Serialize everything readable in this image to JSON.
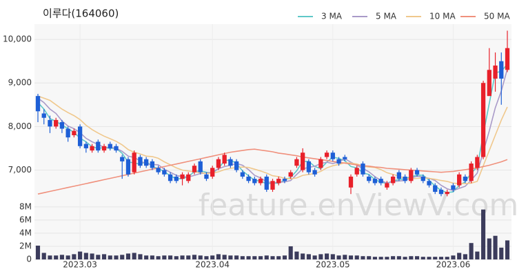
{
  "chart_data": {
    "type": "candlestick",
    "title": "이루다(164060)",
    "watermark": "feature.enViewV.com",
    "categories": [
      null,
      null,
      null,
      null,
      null,
      null,
      null,
      "2023.03",
      null,
      null,
      null,
      null,
      null,
      null,
      null,
      null,
      null,
      null,
      null,
      null,
      null,
      null,
      null,
      null,
      null,
      null,
      null,
      null,
      null,
      "2023.04",
      null,
      null,
      null,
      null,
      null,
      null,
      null,
      null,
      null,
      null,
      null,
      null,
      null,
      null,
      null,
      null,
      null,
      null,
      null,
      "2023.05",
      null,
      null,
      null,
      null,
      null,
      null,
      null,
      null,
      null,
      null,
      null,
      null,
      null,
      null,
      null,
      null,
      null,
      null,
      null,
      "2023.06",
      null,
      null,
      null,
      null,
      null,
      null,
      null,
      null,
      null
    ],
    "up_color": "#e8202a",
    "down_color": "#1e5fd6",
    "open": [
      8700,
      8300,
      8150,
      8000,
      8100,
      7950,
      7800,
      8000,
      7600,
      7450,
      7650,
      7450,
      7600,
      7550,
      7300,
      7250,
      6950,
      7300,
      7250,
      7200,
      7050,
      7000,
      6900,
      6850,
      6800,
      6750,
      6950,
      7200,
      6900,
      6850,
      7050,
      7150,
      7250,
      7200,
      6950,
      6850,
      6800,
      6700,
      6850,
      6550,
      6700,
      6800,
      6850,
      7100,
      7000,
      7200,
      7000,
      7050,
      7300,
      7400,
      7250,
      7300,
      6600,
      6900,
      7150,
      6850,
      6800,
      6800,
      6600,
      6700,
      6950,
      6850,
      6750,
      7000,
      6850,
      6750,
      6650,
      6550,
      6450,
      6650,
      6650,
      6850,
      6750,
      7050,
      7300,
      8700,
      9100,
      9500,
      9300
    ],
    "high": [
      8750,
      8400,
      8250,
      8200,
      8150,
      8000,
      7950,
      8050,
      7650,
      7600,
      7700,
      7600,
      7650,
      7600,
      7350,
      7300,
      7450,
      7350,
      7300,
      7250,
      7100,
      7050,
      6950,
      6900,
      6950,
      6950,
      7150,
      7250,
      6950,
      7100,
      7300,
      7400,
      7300,
      7250,
      7000,
      6900,
      6850,
      6850,
      6900,
      6800,
      6850,
      6850,
      7000,
      7300,
      7500,
      7250,
      7050,
      7300,
      7450,
      7450,
      7300,
      7350,
      6900,
      7100,
      7200,
      6900,
      6850,
      6850,
      6750,
      6900,
      7000,
      6900,
      7050,
      7050,
      6900,
      6800,
      6700,
      6600,
      6550,
      6700,
      6950,
      6900,
      7200,
      7350,
      9050,
      9800,
      9700,
      9700,
      10200
    ],
    "low": [
      8100,
      8050,
      7850,
      7950,
      7850,
      7650,
      7750,
      7500,
      7400,
      7400,
      7400,
      7400,
      7450,
      7400,
      6800,
      6850,
      6900,
      7050,
      7050,
      7000,
      6900,
      6850,
      6700,
      6700,
      6650,
      6700,
      6900,
      6900,
      6750,
      6800,
      7000,
      7100,
      7050,
      6950,
      6800,
      6700,
      6650,
      6650,
      6500,
      6500,
      6650,
      6700,
      6800,
      7050,
      6950,
      6900,
      6850,
      7000,
      7250,
      7200,
      7100,
      7200,
      6450,
      6850,
      6850,
      6700,
      6650,
      6650,
      6550,
      6650,
      6750,
      6700,
      6700,
      6850,
      6700,
      6600,
      6450,
      6400,
      6400,
      6500,
      6600,
      6700,
      6700,
      7000,
      7250,
      8700,
      8800,
      8500,
      9250
    ],
    "close": [
      8350,
      8200,
      8000,
      8150,
      7950,
      7750,
      7900,
      7550,
      7500,
      7550,
      7450,
      7550,
      7500,
      7450,
      7200,
      6900,
      7400,
      7100,
      7100,
      7050,
      6950,
      6900,
      6750,
      6750,
      6900,
      6900,
      7100,
      6950,
      6800,
      7050,
      7250,
      7350,
      7100,
      7000,
      6850,
      6750,
      6700,
      6800,
      6550,
      6750,
      6800,
      6750,
      6950,
      7250,
      7400,
      6950,
      6900,
      7250,
      7400,
      7250,
      7150,
      7250,
      6850,
      7050,
      6900,
      6750,
      6700,
      6700,
      6700,
      6850,
      6800,
      6750,
      7000,
      6900,
      6750,
      6650,
      6500,
      6450,
      6500,
      6550,
      6900,
      6750,
      7150,
      7300,
      9000,
      9300,
      9400,
      9100,
      9800
    ],
    "series": [
      {
        "name": "3 MA",
        "color": "#5fc8c8",
        "values": [
          8550,
          8400,
          8183,
          8117,
          8033,
          7950,
          7867,
          7733,
          7650,
          7533,
          7500,
          7517,
          7500,
          7500,
          7383,
          7183,
          7167,
          7133,
          7200,
          7083,
          7033,
          6967,
          6867,
          6800,
          6800,
          6850,
          6967,
          6983,
          6950,
          6933,
          7033,
          7217,
          7233,
          7150,
          6983,
          6867,
          6767,
          6750,
          6683,
          6700,
          6700,
          6767,
          6833,
          6983,
          7200,
          7200,
          7083,
          7033,
          7183,
          7300,
          7267,
          7217,
          7083,
          7050,
          6933,
          6900,
          6783,
          6717,
          6700,
          6750,
          6783,
          6800,
          6850,
          6883,
          6883,
          6767,
          6633,
          6533,
          6483,
          6500,
          6650,
          6733,
          6933,
          7067,
          7817,
          8533,
          9233,
          9267,
          9433
        ]
      },
      {
        "name": "5 MA",
        "color": "#a99ac8",
        "values": [
          8650,
          8550,
          8400,
          8300,
          8130,
          8010,
          7950,
          7860,
          7730,
          7650,
          7590,
          7520,
          7520,
          7500,
          7430,
          7320,
          7290,
          7210,
          7140,
          7130,
          7120,
          7020,
          6950,
          6880,
          6850,
          6840,
          6880,
          6920,
          6930,
          6960,
          7030,
          7080,
          7110,
          7150,
          7110,
          7010,
          6880,
          6820,
          6730,
          6710,
          6720,
          6730,
          6760,
          6900,
          7030,
          7060,
          7090,
          7150,
          7180,
          7150,
          7190,
          7260,
          7180,
          7110,
          7040,
          6960,
          6850,
          6760,
          6700,
          6740,
          6750,
          6760,
          6820,
          6860,
          6840,
          6810,
          6760,
          6650,
          6570,
          6530,
          6580,
          6630,
          6770,
          6930,
          7420,
          7900,
          8430,
          8820,
          9320
        ]
      },
      {
        "name": "10 MA",
        "color": "#f0c88c",
        "values": [
          8700,
          8650,
          8600,
          8500,
          8400,
          8320,
          8250,
          8160,
          8030,
          7930,
          7850,
          7780,
          7720,
          7660,
          7580,
          7470,
          7410,
          7370,
          7320,
          7310,
          7270,
          7190,
          7120,
          7050,
          7000,
          6980,
          6960,
          6940,
          6920,
          6930,
          6960,
          7010,
          7040,
          7060,
          7070,
          7060,
          7020,
          6980,
          6930,
          6870,
          6850,
          6810,
          6800,
          6820,
          6880,
          6900,
          6920,
          6970,
          7050,
          7100,
          7130,
          7170,
          7160,
          7140,
          7090,
          7070,
          7060,
          7010,
          6940,
          6900,
          6860,
          6810,
          6800,
          6810,
          6820,
          6810,
          6790,
          6760,
          6740,
          6700,
          6690,
          6690,
          6700,
          6740,
          7100,
          7450,
          7800,
          8150,
          8450
        ]
      },
      {
        "name": "50 MA",
        "color": "#f0907c",
        "values": [
          6450,
          6480,
          6510,
          6540,
          6570,
          6600,
          6630,
          6660,
          6690,
          6720,
          6750,
          6780,
          6810,
          6840,
          6870,
          6900,
          6930,
          6960,
          6990,
          7020,
          7050,
          7080,
          7110,
          7140,
          7170,
          7200,
          7230,
          7260,
          7290,
          7320,
          7350,
          7380,
          7410,
          7430,
          7450,
          7470,
          7480,
          7460,
          7440,
          7420,
          7390,
          7370,
          7350,
          7330,
          7300,
          7280,
          7260,
          7240,
          7220,
          7200,
          7180,
          7160,
          7140,
          7120,
          7100,
          7090,
          7070,
          7060,
          7040,
          7030,
          7020,
          7010,
          7000,
          6990,
          6980,
          6970,
          6960,
          6950,
          6960,
          6970,
          6990,
          7010,
          7030,
          7050,
          7080,
          7110,
          7150,
          7190,
          7240
        ]
      }
    ],
    "ylim": [
      6200,
      10350
    ],
    "yticks": [
      {
        "value": 7000,
        "label": "7,000"
      },
      {
        "value": 8000,
        "label": "8,000"
      },
      {
        "value": 9000,
        "label": "9,000"
      },
      {
        "value": 10000,
        "label": "10,000"
      }
    ],
    "volume": {
      "color": "#3c3c5c",
      "values": [
        2.1,
        1.0,
        0.6,
        0.6,
        0.7,
        0.6,
        0.8,
        1.2,
        1.0,
        0.9,
        0.7,
        0.8,
        0.6,
        0.6,
        0.7,
        0.9,
        1.0,
        0.8,
        0.6,
        0.6,
        0.5,
        0.6,
        0.6,
        0.5,
        0.6,
        0.6,
        0.7,
        0.6,
        0.5,
        0.6,
        0.8,
        0.7,
        0.6,
        0.6,
        0.5,
        0.5,
        0.5,
        0.5,
        0.6,
        0.5,
        0.5,
        0.6,
        2.0,
        1.2,
        0.9,
        0.8,
        0.6,
        0.8,
        0.9,
        0.8,
        0.6,
        0.7,
        0.6,
        0.6,
        0.5,
        0.5,
        0.4,
        0.4,
        0.4,
        0.5,
        0.5,
        0.4,
        0.5,
        0.5,
        0.4,
        0.4,
        0.4,
        0.4,
        0.4,
        0.6,
        1.0,
        0.8,
        2.5,
        1.2,
        7.6,
        3.2,
        3.6,
        1.8,
        2.9
      ],
      "ylim": [
        0,
        8.3
      ],
      "yticks": [
        0,
        {
          "value": 2,
          "label": "2M"
        },
        {
          "value": 4,
          "label": "4M"
        },
        {
          "value": 6,
          "label": "6M"
        },
        {
          "value": 8,
          "label": "8M"
        }
      ]
    },
    "grid": true,
    "legend": "top-right"
  }
}
